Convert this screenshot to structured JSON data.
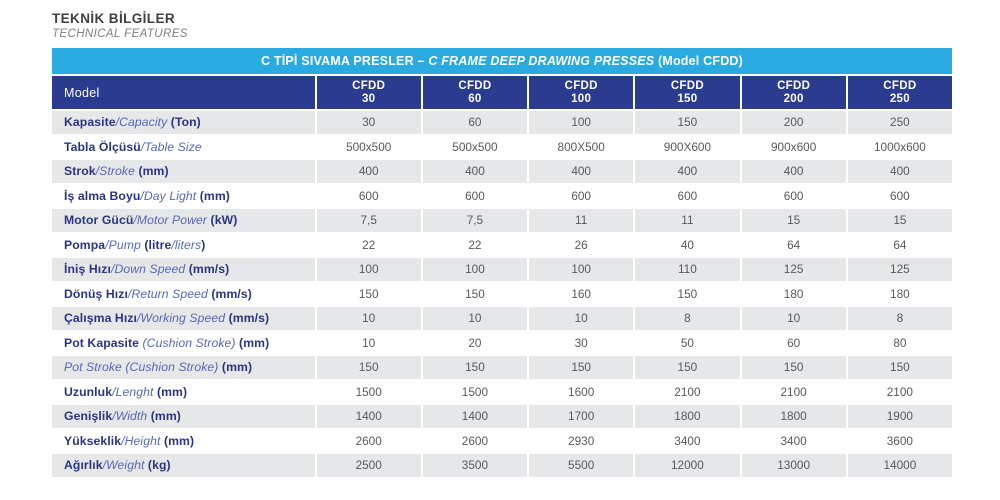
{
  "page": {
    "title_tr": "TEKNİK BİLGİLER",
    "title_en": "TECHNICAL FEATURES"
  },
  "colors": {
    "banner_bg": "#29aae1",
    "header_bg": "#2b3b90",
    "row_alt_bg": "#e6e7e8",
    "label_navy": "#293584",
    "label_italic_blue": "#5668b8",
    "value_gray": "#58595b"
  },
  "table": {
    "banner": {
      "tr_bold": "C TİPİ SIVAMA PRESLER – ",
      "en_italic": "C FRAME DEEP DRAWING PRESSES",
      "model_suffix": " (Model CFDD)"
    },
    "header": {
      "model_label": "Model",
      "columns": [
        {
          "line1": "CFDD",
          "line2": "30"
        },
        {
          "line1": "CFDD",
          "line2": "60"
        },
        {
          "line1": "CFDD",
          "line2": "100"
        },
        {
          "line1": "CFDD",
          "line2": "150"
        },
        {
          "line1": "CFDD",
          "line2": "200"
        },
        {
          "line1": "CFDD",
          "line2": "250"
        }
      ]
    },
    "rows": [
      {
        "label": [
          {
            "t": "Kapasite",
            "s": "b"
          },
          {
            "t": "/Capacity",
            "s": "i"
          },
          {
            "t": " (Ton)",
            "s": "b"
          }
        ],
        "values": [
          "30",
          "60",
          "100",
          "150",
          "200",
          "250"
        ]
      },
      {
        "label": [
          {
            "t": "Tabla Ölçüsü",
            "s": "b"
          },
          {
            "t": "/Table Size",
            "s": "i"
          }
        ],
        "values": [
          "500x500",
          "500x500",
          "800X500",
          "900X600",
          "900x600",
          "1000x600"
        ]
      },
      {
        "label": [
          {
            "t": "Strok",
            "s": "b"
          },
          {
            "t": "/Stroke",
            "s": "i"
          },
          {
            "t": " (mm)",
            "s": "b"
          }
        ],
        "values": [
          "400",
          "400",
          "400",
          "400",
          "400",
          "400"
        ]
      },
      {
        "label": [
          {
            "t": "İş alma Boyu",
            "s": "b"
          },
          {
            "t": "/Day Light",
            "s": "i"
          },
          {
            "t": " (mm)",
            "s": "b"
          }
        ],
        "values": [
          "600",
          "600",
          "600",
          "600",
          "600",
          "600"
        ]
      },
      {
        "label": [
          {
            "t": "Motor Gücü",
            "s": "b"
          },
          {
            "t": "/Motor Power",
            "s": "i"
          },
          {
            "t": " (kW)",
            "s": "b"
          }
        ],
        "values": [
          "7,5",
          "7,5",
          "11",
          "11",
          "15",
          "15"
        ]
      },
      {
        "label": [
          {
            "t": "Pompa",
            "s": "b"
          },
          {
            "t": "/Pump",
            "s": "i"
          },
          {
            "t": " (litre",
            "s": "b"
          },
          {
            "t": "/liters",
            "s": "i"
          },
          {
            "t": ")",
            "s": "b"
          }
        ],
        "values": [
          "22",
          "22",
          "26",
          "40",
          "64",
          "64"
        ]
      },
      {
        "label": [
          {
            "t": "İniş Hızı",
            "s": "b"
          },
          {
            "t": "/Down Speed",
            "s": "i"
          },
          {
            "t": " (mm/s)",
            "s": "b"
          }
        ],
        "values": [
          "100",
          "100",
          "100",
          "110",
          "125",
          "125"
        ]
      },
      {
        "label": [
          {
            "t": "Dönüş Hızı",
            "s": "b"
          },
          {
            "t": "/Return Speed",
            "s": "i"
          },
          {
            "t": " (mm/s)",
            "s": "b"
          }
        ],
        "values": [
          "150",
          "150",
          "160",
          "150",
          "180",
          "180"
        ]
      },
      {
        "label": [
          {
            "t": "Çalışma Hızı",
            "s": "b"
          },
          {
            "t": "/Working Speed",
            "s": "i"
          },
          {
            "t": " (mm/s)",
            "s": "b"
          }
        ],
        "values": [
          "10",
          "10",
          "10",
          "8",
          "10",
          "8"
        ]
      },
      {
        "label": [
          {
            "t": "Pot Kapasite ",
            "s": "b"
          },
          {
            "t": "(Cushion Stroke)",
            "s": "i"
          },
          {
            "t": " (mm)",
            "s": "b"
          }
        ],
        "values": [
          "10",
          "20",
          "30",
          "50",
          "60",
          "80"
        ]
      },
      {
        "label": [
          {
            "t": "Pot Stroke (Cushion Stroke)",
            "s": "i"
          },
          {
            "t": " (mm)",
            "s": "b"
          }
        ],
        "values": [
          "150",
          "150",
          "150",
          "150",
          "150",
          "150"
        ]
      },
      {
        "label": [
          {
            "t": "Uzunluk",
            "s": "b"
          },
          {
            "t": "/Lenght",
            "s": "i"
          },
          {
            "t": " (mm)",
            "s": "b"
          }
        ],
        "values": [
          "1500",
          "1500",
          "1600",
          "2100",
          "2100",
          "2100"
        ]
      },
      {
        "label": [
          {
            "t": "Genişlik",
            "s": "b"
          },
          {
            "t": "/Width",
            "s": "i"
          },
          {
            "t": " (mm)",
            "s": "b"
          }
        ],
        "values": [
          "1400",
          "1400",
          "1700",
          "1800",
          "1800",
          "1900"
        ]
      },
      {
        "label": [
          {
            "t": "Yükseklik",
            "s": "b"
          },
          {
            "t": "/Height",
            "s": "i"
          },
          {
            "t": " (mm)",
            "s": "b"
          }
        ],
        "values": [
          "2600",
          "2600",
          "2930",
          "3400",
          "3400",
          "3600"
        ]
      },
      {
        "label": [
          {
            "t": "Ağırlık",
            "s": "b"
          },
          {
            "t": "/Weight",
            "s": "i"
          },
          {
            "t": " (kg)",
            "s": "b"
          }
        ],
        "values": [
          "2500",
          "3500",
          "5500",
          "12000",
          "13000",
          "14000"
        ]
      }
    ]
  }
}
